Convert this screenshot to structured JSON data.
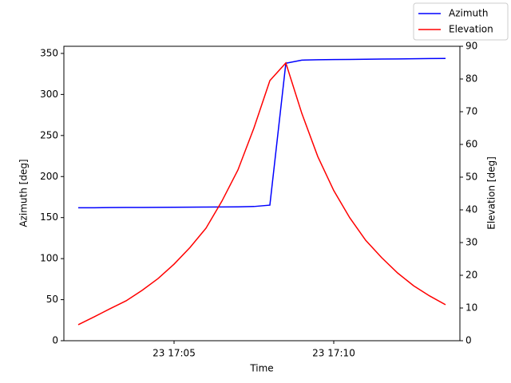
{
  "chart_data": {
    "type": "line",
    "x_label": "Time",
    "y_label": "Azimuth [deg]",
    "y2_label": "Elevation [deg]",
    "x": [
      "23 17:02:00",
      "23 17:02:30",
      "23 17:03:00",
      "23 17:03:30",
      "23 17:04:00",
      "23 17:04:30",
      "23 17:05:00",
      "23 17:05:30",
      "23 17:06:00",
      "23 17:06:30",
      "23 17:07:00",
      "23 17:07:30",
      "23 17:08:00",
      "23 17:08:30",
      "23 17:09:00",
      "23 17:09:30",
      "23 17:10:00",
      "23 17:10:30",
      "23 17:11:00",
      "23 17:11:30",
      "23 17:12:00",
      "23 17:12:30",
      "23 17:13:00",
      "23 17:13:30"
    ],
    "series": [
      {
        "name": "Azimuth",
        "color": "#0000ff",
        "axis": "y",
        "values": [
          162,
          162,
          162.2,
          162.3,
          162.4,
          162.5,
          162.6,
          162.7,
          162.8,
          162.9,
          163.1,
          163.5,
          165.2,
          338,
          341.8,
          342.3,
          342.5,
          342.7,
          342.9,
          343.1,
          343.3,
          343.5,
          343.7,
          343.9
        ]
      },
      {
        "name": "Elevation",
        "color": "#ff0000",
        "axis": "y2",
        "values": [
          4.9,
          7.3,
          9.8,
          12.2,
          15.4,
          19,
          23.4,
          28.5,
          34.4,
          42.7,
          52.2,
          65,
          79.5,
          84.9,
          69.5,
          56.3,
          45.9,
          37.6,
          30.7,
          25.4,
          20.7,
          16.8,
          13.7,
          11.0
        ]
      }
    ],
    "xlim": [
      "23 17:01:33",
      "23 17:13:57"
    ],
    "xticks": [
      "23 17:05",
      "23 17:10"
    ],
    "ylim": [
      0,
      358.7
    ],
    "yticks": [
      0,
      50,
      100,
      150,
      200,
      250,
      300,
      350
    ],
    "y2lim": [
      0,
      90
    ],
    "y2ticks": [
      0,
      10,
      20,
      30,
      40,
      50,
      60,
      70,
      80,
      90
    ],
    "grid": false,
    "legend": "upper right"
  }
}
